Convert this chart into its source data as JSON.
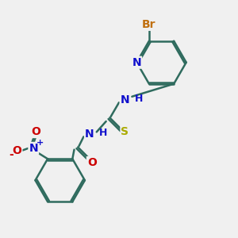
{
  "background_color": "#f0f0f0",
  "bond_color": "#2f6b5e",
  "bond_width": 1.8,
  "atom_colors": {
    "Br": "#c07010",
    "N": "#1010cc",
    "S": "#aaaa00",
    "O": "#cc0000",
    "H": "#1010cc",
    "C": "#2f6b5e"
  },
  "font_size": 10,
  "fig_size": [
    3.0,
    3.0
  ],
  "dpi": 100,
  "xlim": [
    0,
    10
  ],
  "ylim": [
    0,
    10
  ]
}
